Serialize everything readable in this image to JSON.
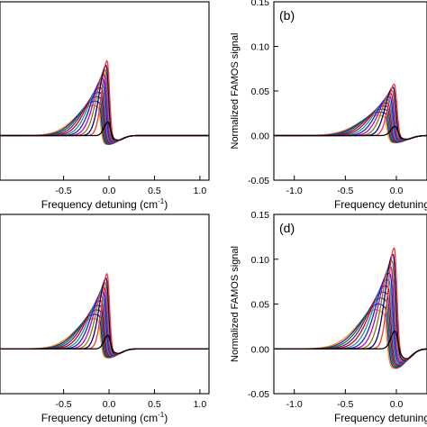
{
  "chart_data": [
    {
      "panel": "",
      "type": "line",
      "xlabel": "Frequency detuning (cm",
      "xlabel_sup": "-1",
      "xlabel_suffix": ")",
      "ylabel": "",
      "xlim": [
        -1.2,
        1.1
      ],
      "ylim": [
        -0.05,
        0.15
      ],
      "xticks": [
        "-0.5",
        "0.0",
        "0.5",
        "1.0"
      ],
      "yticks": [],
      "peak": 0.09,
      "min": -0.01,
      "colors": [
        "#ff8c00",
        "#1f1fcc",
        "#008000",
        "#6a0dad",
        "#cc0000",
        "#00a0a0",
        "#1f1fcc",
        "#c000c0",
        "#808000",
        "#000080",
        "#ff3333",
        "#000000"
      ]
    },
    {
      "panel": "(b)",
      "type": "line",
      "xlabel": "Frequency detuning",
      "xlabel_sup": "",
      "xlabel_suffix": "",
      "ylabel": "Normalized FAMOS signal",
      "xlim": [
        -1.2,
        0.3
      ],
      "ylim": [
        -0.05,
        0.15
      ],
      "xticks": [
        "-1.0",
        "-0.5",
        "0.0"
      ],
      "yticks": [
        "-0.05",
        "0.00",
        "0.05",
        "0.10",
        "0.15"
      ],
      "peak": 0.062,
      "min": -0.008,
      "colors": [
        "#ff8c00",
        "#1f1fcc",
        "#008000",
        "#6a0dad",
        "#cc0000",
        "#00a0a0",
        "#1f1fcc",
        "#c000c0",
        "#808000",
        "#000080",
        "#ff3333",
        "#000000"
      ]
    },
    {
      "panel": "",
      "type": "line",
      "xlabel": "Frequency detuning (cm",
      "xlabel_sup": "-1",
      "xlabel_suffix": ")",
      "ylabel": "",
      "xlim": [
        -1.2,
        1.1
      ],
      "ylim": [
        -0.05,
        0.15
      ],
      "xticks": [
        "-0.5",
        "0.0",
        "0.5",
        "1.0"
      ],
      "yticks": [],
      "peak": 0.09,
      "min": -0.01,
      "colors": [
        "#ff8c00",
        "#1f1fcc",
        "#008000",
        "#6a0dad",
        "#cc0000",
        "#00a0a0",
        "#1f1fcc",
        "#c000c0",
        "#808000",
        "#000080",
        "#ff3333",
        "#000000"
      ]
    },
    {
      "panel": "(d)",
      "type": "line",
      "xlabel": "Frequency detuning",
      "xlabel_sup": "",
      "xlabel_suffix": "",
      "ylabel": "Normalized FAMOS signal",
      "xlim": [
        -1.2,
        0.3
      ],
      "ylim": [
        -0.05,
        0.15
      ],
      "xticks": [
        "-1.0",
        "-0.5",
        "0.0"
      ],
      "yticks": [
        "-0.05",
        "0.00",
        "0.05",
        "0.10",
        "0.15"
      ],
      "peak": 0.122,
      "min": -0.022,
      "colors": [
        "#ff8c00",
        "#1f1fcc",
        "#008000",
        "#6a0dad",
        "#cc0000",
        "#00a0a0",
        "#1f1fcc",
        "#c000c0",
        "#808000",
        "#000080",
        "#ff3333",
        "#000000"
      ]
    }
  ]
}
